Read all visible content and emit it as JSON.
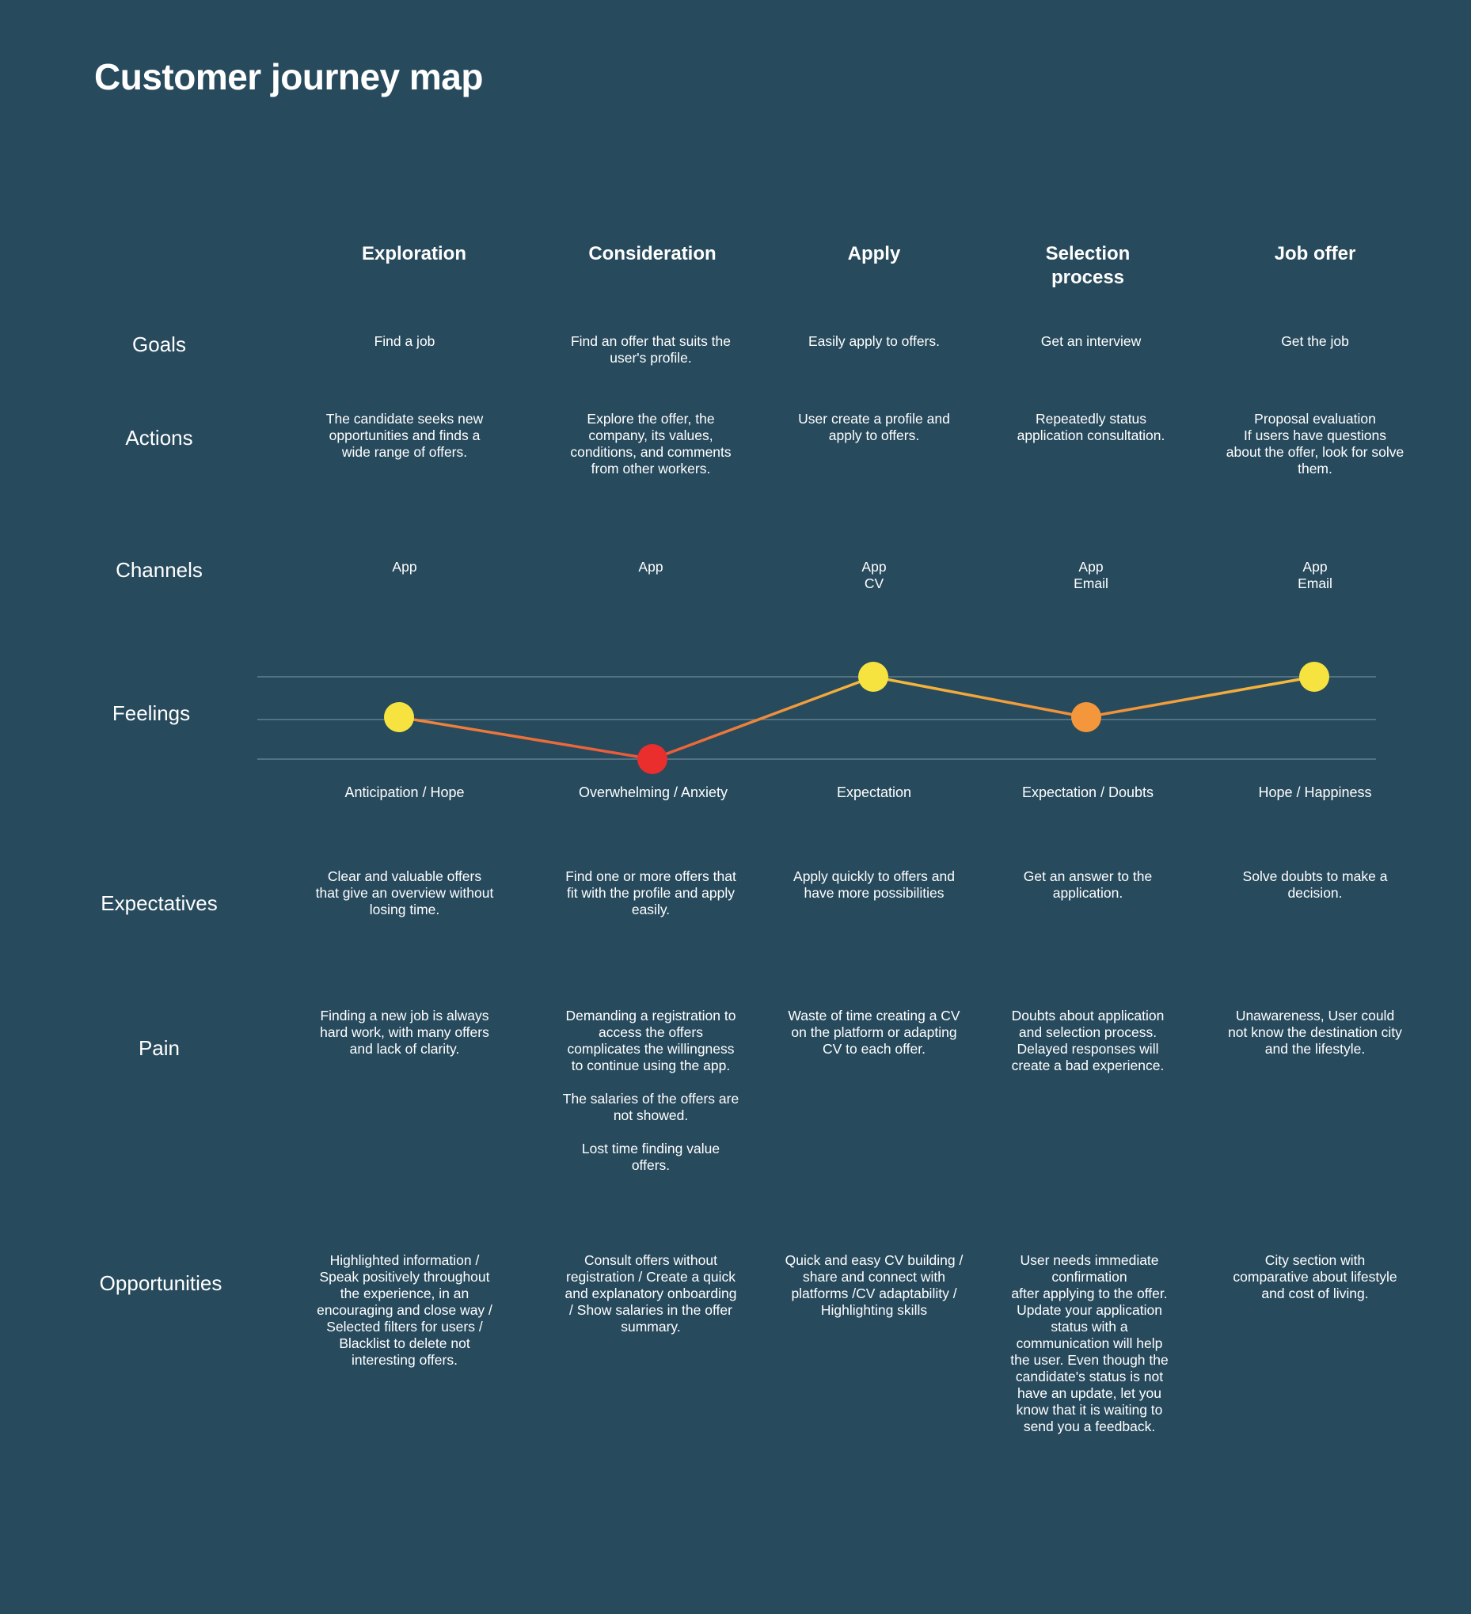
{
  "title": "Customer journey map",
  "stages": [
    "Exploration",
    "Consideration",
    "Apply",
    "Selection\nprocess",
    "Job offer"
  ],
  "row_labels": {
    "goals": "Goals",
    "actions": "Actions",
    "channels": "Channels",
    "feelings": "Feelings",
    "expectatives": "Expectatives",
    "pain": "Pain",
    "opportunities": "Opportunities"
  },
  "goals": [
    "Find a job",
    "Find an offer that suits the user's profile.",
    "Easily apply to offers.",
    "Get an interview",
    "Get the job"
  ],
  "actions": [
    "The candidate seeks new opportunities and finds a wide range of offers.",
    "Explore the offer, the company, its values, conditions, and comments from other workers.",
    "User create a profile and apply to offers.",
    "Repeatedly status application consultation.",
    "Proposal evaluation\nIf users have questions about the offer, look for solve them."
  ],
  "channels": [
    "App",
    "App",
    "App\nCV",
    "App\nEmail",
    "App\nEmail"
  ],
  "feelings": {
    "labels": [
      "Anticipation / Hope",
      "Overwhelming / Anxiety",
      "Expectation",
      "Expectation / Doubts",
      "Hope / Happiness"
    ],
    "levels": [
      1,
      0,
      2,
      1,
      2
    ],
    "colors": [
      "#f6e33f",
      "#ea2d2d",
      "#f6e33f",
      "#f4963b",
      "#f6e33f"
    ],
    "line_color_high": "#f5bf3c",
    "line_color_low": "#e8553a",
    "grid_color": "#6e8a98"
  },
  "expectatives": [
    "Clear and valuable offers that give an overview without losing time.",
    "Find one or more offers that fit with the profile and apply easily.",
    "Apply quickly to offers and have more possibilities",
    "Get an answer to the application.",
    "Solve doubts to make a decision."
  ],
  "pain": [
    "Finding a new job is always hard work, with many offers and lack of clarity.",
    "Demanding a registration to access the offers complicates the willingness to continue using the app.\n\nThe salaries of the offers are not showed.\n\nLost time finding value offers.",
    "Waste of time creating a CV on the platform or adapting CV to each offer.",
    "Doubts about application and selection process. Delayed responses will create a bad experience.",
    "Unawareness, User could not know the destination city and the lifestyle."
  ],
  "opportunities": [
    "Highlighted information / Speak positively throughout the experience, in an encouraging and close way / Selected filters for users /  Blacklist to delete not interesting offers.",
    "Consult offers without registration / Create a quick and explanatory onboarding / Show salaries in the offer summary.",
    "Quick and easy CV building / share and connect with platforms /CV adaptability / Highlighting skills",
    "User needs immediate confirmation\nafter applying to the offer. Update your application status with a communication will help the user. Even though the candidate's status is not have an update, let you know that it is waiting to send you a feedback.",
    "City section with comparative about lifestyle and cost of living."
  ]
}
